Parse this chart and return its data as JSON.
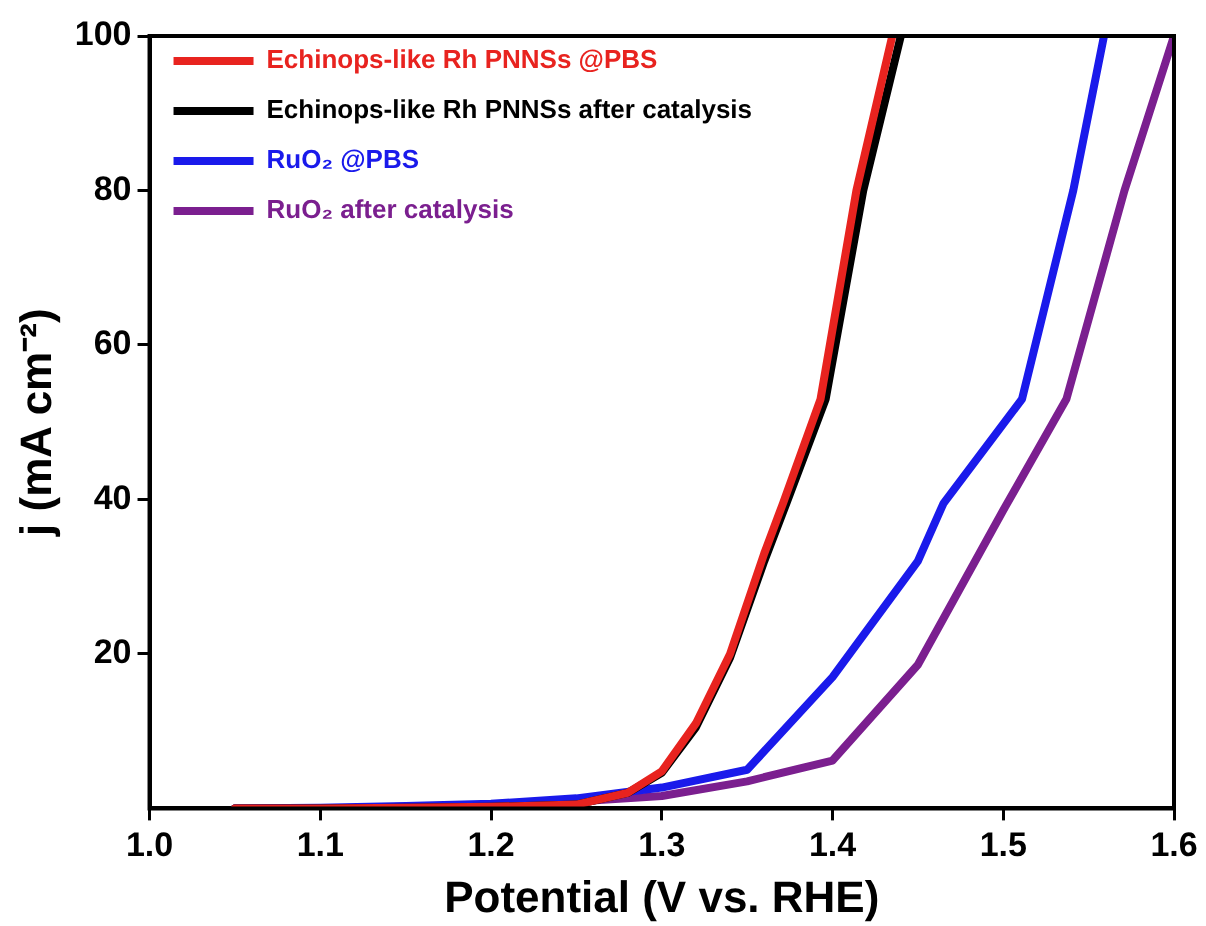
{
  "chart_data": {
    "type": "line",
    "xlabel": "Potential (V vs. RHE)",
    "ylabel": "j (mA cm⁻²)",
    "xlim": [
      1.0,
      1.6
    ],
    "xticks": [
      {
        "value": 1.0,
        "label": "1.0"
      },
      1.1,
      1.2,
      1.3,
      1.4,
      1.5,
      1.6
    ],
    "ylim": [
      0,
      100
    ],
    "yticks": [
      20,
      40,
      60,
      80,
      100
    ],
    "legend": "top left",
    "marker": "none",
    "line_style": "solid",
    "grid": false,
    "series": [
      {
        "name": "Echinops-like Rh PNNSs @PBS",
        "color": "#e8231f",
        "x": [
          1.05,
          1.1,
          1.15,
          1.2,
          1.25,
          1.28,
          1.3,
          1.32,
          1.34,
          1.36,
          1.371,
          1.393,
          1.414,
          1.435
        ],
        "values": [
          0,
          0,
          0.1,
          0.2,
          0.5,
          2,
          4.8,
          11,
          20,
          33,
          39.5,
          53,
          80,
          100
        ]
      },
      {
        "name": "Echinops-like Rh PNNSs after catalysis",
        "color": "#000000",
        "x": [
          1.05,
          1.1,
          1.15,
          1.2,
          1.25,
          1.28,
          1.3,
          1.32,
          1.34,
          1.36,
          1.373,
          1.396,
          1.418,
          1.44
        ],
        "values": [
          0,
          0,
          0.1,
          0.2,
          0.5,
          2,
          4.6,
          10.5,
          19.5,
          32,
          39.5,
          53,
          80,
          100
        ]
      },
      {
        "name": "RuO₂ @PBS",
        "color": "#1a1aeb",
        "x": [
          1.05,
          1.1,
          1.15,
          1.2,
          1.25,
          1.3,
          1.35,
          1.4,
          1.45,
          1.465,
          1.511,
          1.541,
          1.559
        ],
        "values": [
          0,
          0.1,
          0.3,
          0.6,
          1.3,
          2.7,
          5,
          17,
          32,
          39.5,
          53,
          80,
          100
        ]
      },
      {
        "name": "RuO₂ after catalysis",
        "color": "#7b1f8f",
        "x": [
          1.05,
          1.1,
          1.15,
          1.2,
          1.25,
          1.3,
          1.35,
          1.4,
          1.45,
          1.5,
          1.537,
          1.571,
          1.6
        ],
        "values": [
          0,
          0,
          0.2,
          0.4,
          0.9,
          1.6,
          3.5,
          6.2,
          18.6,
          38.6,
          53,
          80,
          100
        ]
      }
    ]
  }
}
